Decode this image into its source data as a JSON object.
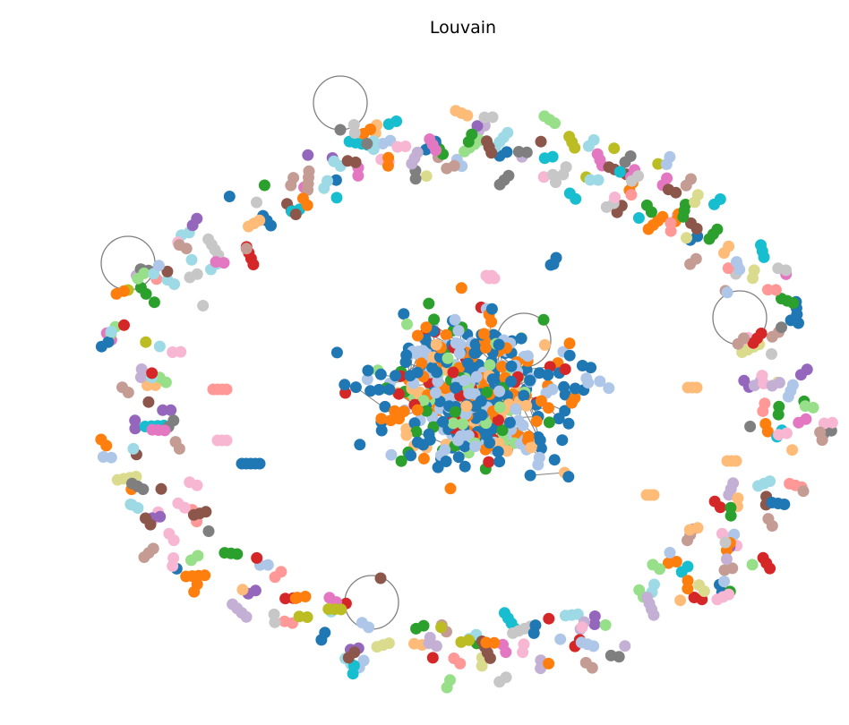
{
  "title": "Louvain",
  "palette": {
    "blue": "#1f77b4",
    "light_blue": "#aec7e8",
    "orange": "#ff7f0e",
    "light_orange": "#ffbb78",
    "green": "#2ca02c",
    "light_green": "#98df8a",
    "red": "#d62728",
    "salmon": "#ff9896",
    "purple": "#9467bd",
    "lavender": "#c5b0d5",
    "brown": "#8c564b",
    "tan": "#c49c94",
    "pink": "#e377c2",
    "light_pink": "#f7b6d2",
    "gray": "#7f7f7f",
    "light_gray": "#c7c7c7",
    "olive": "#bcbd22",
    "khaki": "#dbdb8d",
    "cyan": "#17becf",
    "light_cyan": "#9edae5"
  },
  "edge_color": "#808080"
}
